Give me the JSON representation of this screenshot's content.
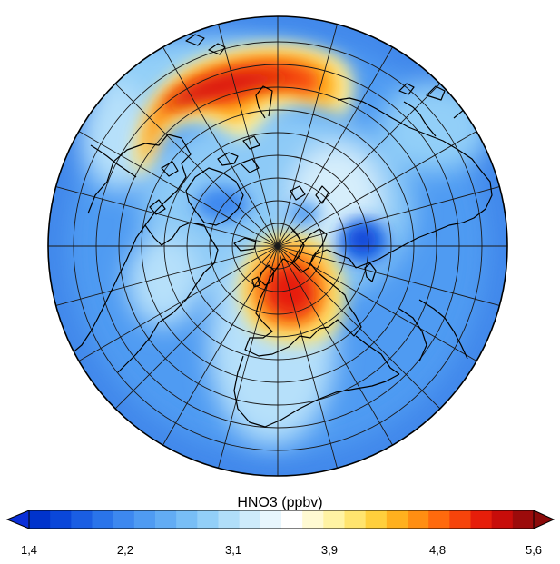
{
  "map": {
    "projection": "polar-orthographic",
    "hemisphere": "northern",
    "variable": "HNO3",
    "field_features": [
      {
        "name": "high over north pacific",
        "level": 5.4
      },
      {
        "name": "high over europe",
        "level": 5.2
      },
      {
        "name": "low over west siberia",
        "level": 1.6
      }
    ]
  },
  "colorbar": {
    "title": "HNO3 (ppbv)",
    "min": 1.4,
    "max": 5.6,
    "tick_labels": [
      "1,4",
      "2,2",
      "3,1",
      "3,9",
      "4,8",
      "5,6"
    ],
    "tick_values": [
      1.4,
      2.2,
      3.1,
      3.9,
      4.8,
      5.6
    ],
    "extend": "both",
    "colors": [
      "#0033cc",
      "#0a47d9",
      "#1a5ee3",
      "#2a74ea",
      "#3d88ef",
      "#4f9bf2",
      "#62acf4",
      "#78bef6",
      "#92cff8",
      "#b0def9",
      "#cdebfb",
      "#e8f6fd",
      "#ffffff",
      "#fffad2",
      "#fff3a3",
      "#ffe46e",
      "#ffcf3c",
      "#ffb01e",
      "#ff8e12",
      "#ff6a0d",
      "#f6440b",
      "#e61e0a",
      "#c80d0a",
      "#9c0b0b"
    ],
    "under_color": "#0a2fd8",
    "over_color": "#8b0a0a"
  }
}
